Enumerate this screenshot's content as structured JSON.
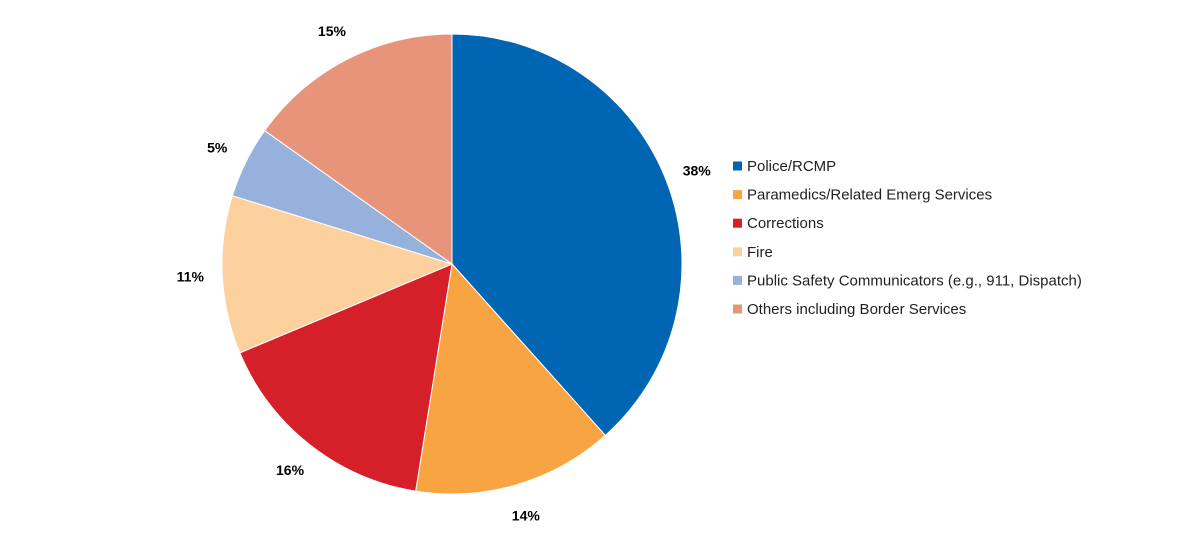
{
  "chart_data": {
    "type": "pie",
    "title": "",
    "legend_position": "right",
    "slices": [
      {
        "name": "Police/RCMP",
        "value": 38,
        "label": "38%",
        "color": "#0066b3"
      },
      {
        "name": "Paramedics/Related Emerg Services",
        "value": 14,
        "label": "14%",
        "color": "#f9a443"
      },
      {
        "name": "Corrections",
        "value": 16,
        "label": "16%",
        "color": "#d62029"
      },
      {
        "name": "Fire",
        "value": 11,
        "label": "11%",
        "color": "#fdd19e"
      },
      {
        "name": "Public Safety Communicators (e.g., 911, Dispatch)",
        "value": 5,
        "label": "5%",
        "color": "#96b1dc"
      },
      {
        "name": "Others including Border Services",
        "value": 15,
        "label": "15%",
        "color": "#e8947a"
      }
    ]
  }
}
